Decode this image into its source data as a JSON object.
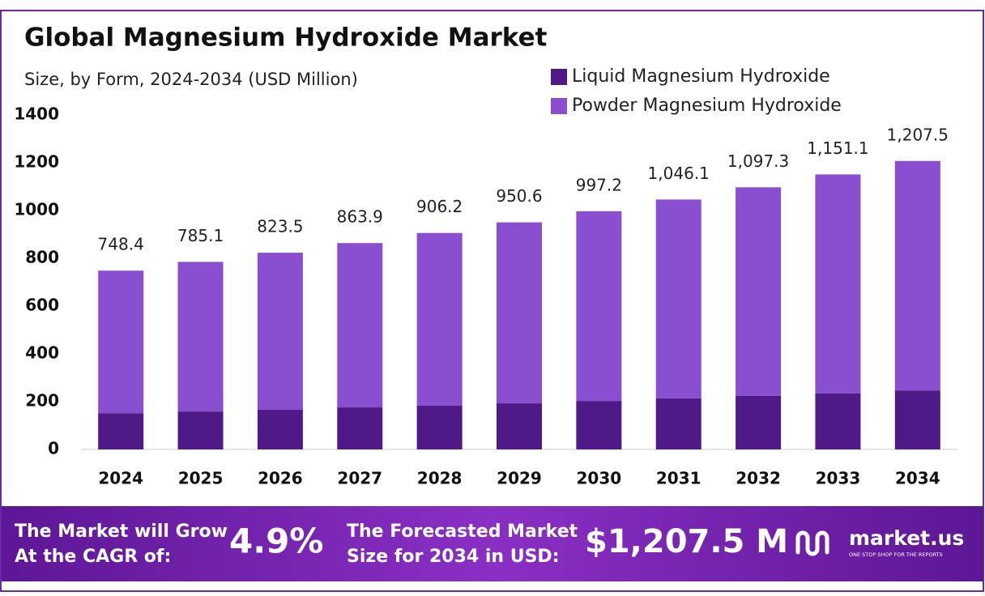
{
  "chart_data": {
    "type": "stacked-bar",
    "title": "Global Magnesium Hydroxide Market",
    "subtitle": "Size, by Form, 2024-2034 (USD Million)",
    "categories": [
      "2024",
      "2025",
      "2026",
      "2027",
      "2028",
      "2029",
      "2030",
      "2031",
      "2032",
      "2033",
      "2034"
    ],
    "series": [
      {
        "name": "Liquid Magnesium Hydroxide",
        "color": "#4f1a87",
        "values": [
          152,
          159,
          166,
          176,
          183,
          193,
          203,
          214,
          224,
          234,
          247
        ]
      },
      {
        "name": "Powder Magnesium Hydroxide",
        "color": "#8a4fd0",
        "values": [
          596.4,
          626.1,
          657.5,
          687.9,
          723.2,
          757.6,
          794.2,
          832.1,
          873.3,
          917.1,
          960.5
        ]
      }
    ],
    "totals": {
      "values": [
        748.4,
        785.1,
        823.5,
        863.9,
        906.2,
        950.6,
        997.2,
        1046.1,
        1097.3,
        1151.1,
        1207.5
      ],
      "value_labels": [
        "748.4",
        "785.1",
        "823.5",
        "863.9",
        "906.2",
        "950.6",
        "997.2",
        "1,046.1",
        "1,097.3",
        "1,151.1",
        "1,207.5"
      ]
    },
    "ylim": [
      0,
      1400
    ],
    "yticks": [
      0,
      200,
      400,
      600,
      800,
      1000,
      1200,
      1400
    ],
    "grid": false,
    "legend": "top-right"
  },
  "footer": {
    "cagr_text_1": "The Market will Grow",
    "cagr_text_2": "At the CAGR of:",
    "cagr_value": "4.9%",
    "forecast_text_1": "The Forecasted Market",
    "forecast_text_2": "Size for 2034 in USD:",
    "forecast_value": "$1,207.5 M",
    "brand": "market.us",
    "tagline": "ONE STOP SHOP FOR THE REPORTS"
  }
}
